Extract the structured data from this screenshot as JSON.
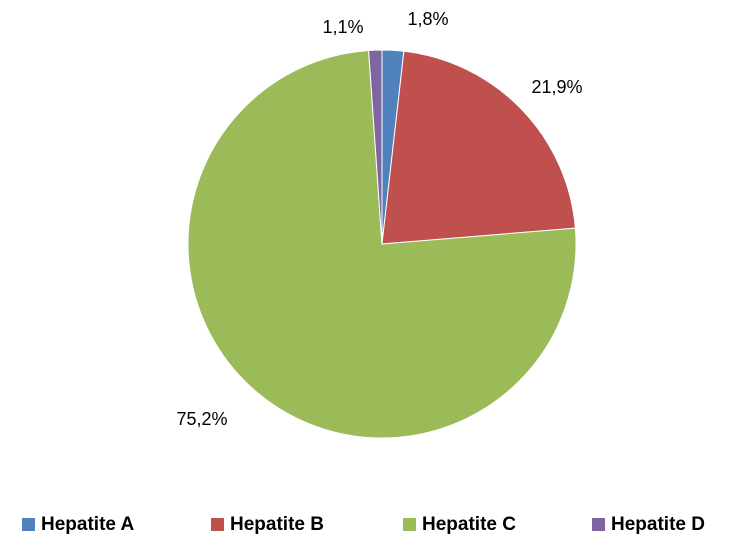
{
  "chart_data": {
    "type": "pie",
    "categories": [
      "Hepatite A",
      "Hepatite B",
      "Hepatite C",
      "Hepatite D"
    ],
    "values": [
      1.8,
      21.9,
      75.2,
      1.1
    ],
    "value_labels": [
      "1,8%",
      "21,9%",
      "75,2%",
      "1,1%"
    ],
    "colors": [
      "#4f81bd",
      "#c0504d",
      "#9bbb59",
      "#8064a2"
    ],
    "legend": "bottom"
  }
}
